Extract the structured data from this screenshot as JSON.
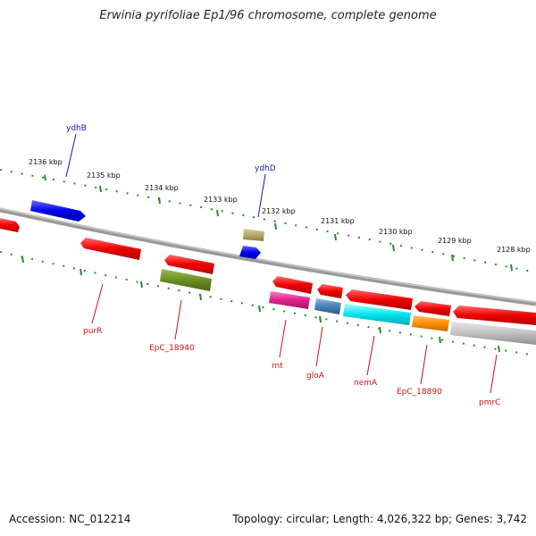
{
  "title": "Erwinia pyrifoliae Ep1/96 chromosome, complete genome",
  "accession": "Accession: NC_012214",
  "summary": "Topology: circular; Length: 4,026,322 bp; Genes: 3,742",
  "scale_labels": [
    "2136 kbp",
    "2135 kbp",
    "2134 kbp",
    "2133 kbp",
    "2132 kbp",
    "2131 kbp",
    "2130 kbp",
    "2129 kbp",
    "2128 kbp"
  ],
  "genes_top": [
    "ydhB",
    "ydhD"
  ],
  "genes_bottom": [
    "purR",
    "EpC_18940",
    "rnt",
    "gloA",
    "nemA",
    "EpC_18890",
    "pmrC"
  ],
  "colors": {
    "backbone": "#808080",
    "ticks": "#2a8a2a",
    "red": "#ee0000",
    "blue": "#0000ee",
    "olive": "#6b8e23",
    "khaki": "#b5a96a",
    "magenta": "#e0208a",
    "steelblue": "#4682b4",
    "cyan": "#00e5ee",
    "orange": "#ff8c00",
    "gray": "#c0c0c0"
  }
}
